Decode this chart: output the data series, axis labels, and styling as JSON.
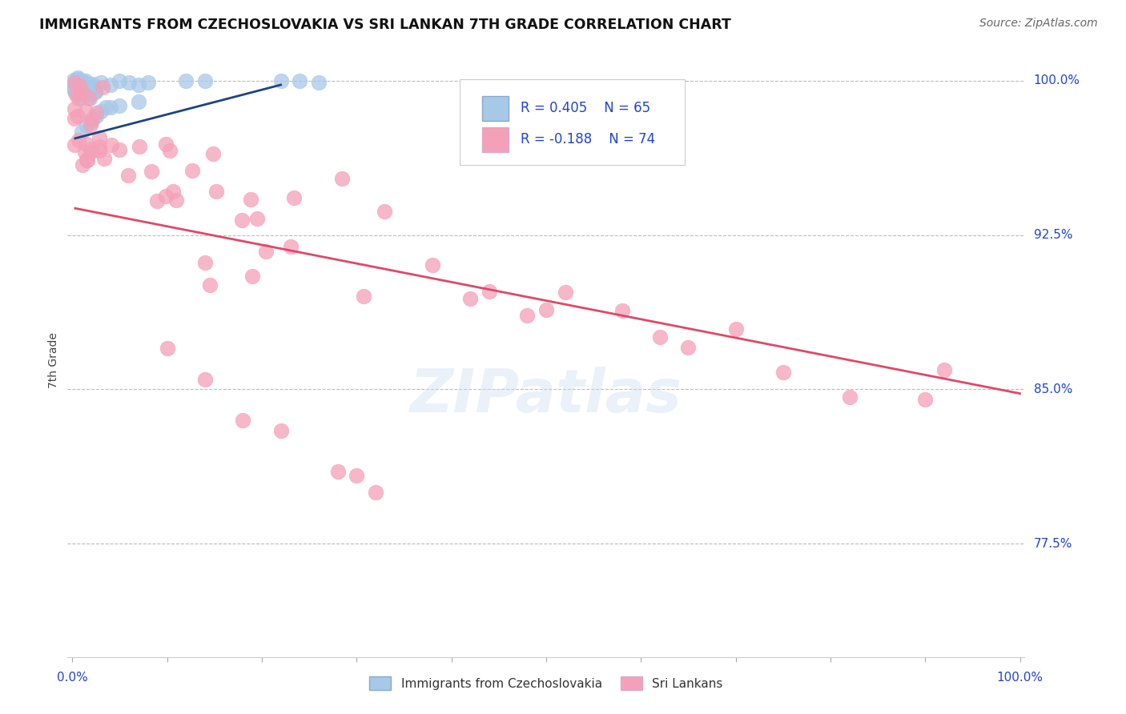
{
  "title": "IMMIGRANTS FROM CZECHOSLOVAKIA VS SRI LANKAN 7TH GRADE CORRELATION CHART",
  "source": "Source: ZipAtlas.com",
  "ylabel": "7th Grade",
  "xlim": [
    0.0,
    1.0
  ],
  "ylim": [
    0.72,
    1.008
  ],
  "ytick_vals": [
    1.0,
    0.925,
    0.85,
    0.775
  ],
  "ytick_labels": [
    "100.0%",
    "92.5%",
    "85.0%",
    "77.5%"
  ],
  "blue_color": "#a8c8e8",
  "pink_color": "#f4a0b8",
  "blue_line_color": "#1a4488",
  "pink_line_color": "#e04868",
  "legend_text_color": "#2244cc",
  "watermark": "ZIPatlas",
  "blue_trend_x0": 0.003,
  "blue_trend_x1": 0.22,
  "blue_trend_y0": 0.972,
  "blue_trend_y1": 0.998,
  "pink_trend_x0": 0.003,
  "pink_trend_x1": 1.0,
  "pink_trend_y0": 0.938,
  "pink_trend_y1": 0.848
}
